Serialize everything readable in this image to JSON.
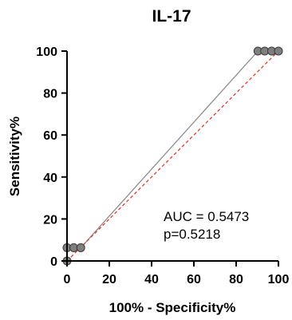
{
  "chart_data": {
    "type": "line",
    "title": "IL-17",
    "xlabel": "100% - Specificity%",
    "ylabel": "Sensitivity%",
    "xlim": [
      0,
      100
    ],
    "ylim": [
      0,
      100
    ],
    "xticks": [
      "0",
      "20",
      "40",
      "60",
      "80",
      "100"
    ],
    "yticks": [
      "0",
      "20",
      "40",
      "60",
      "80",
      "100"
    ],
    "grid": false,
    "series": [
      {
        "x": [
          0,
          0,
          3.2,
          6.5,
          90.3,
          93.5,
          96.8,
          100
        ],
        "y": [
          0,
          6.3,
          6.3,
          6.3,
          100,
          100,
          100,
          100
        ],
        "line_color": "#8c8c8c",
        "marker_color": "#7f7f7f"
      },
      {
        "x": [
          0,
          100
        ],
        "y": [
          0,
          100
        ],
        "line_color": "#e8382f",
        "dashed": true
      }
    ],
    "annotations": [
      "AUC = 0.5473",
      "p=0.5218"
    ]
  }
}
